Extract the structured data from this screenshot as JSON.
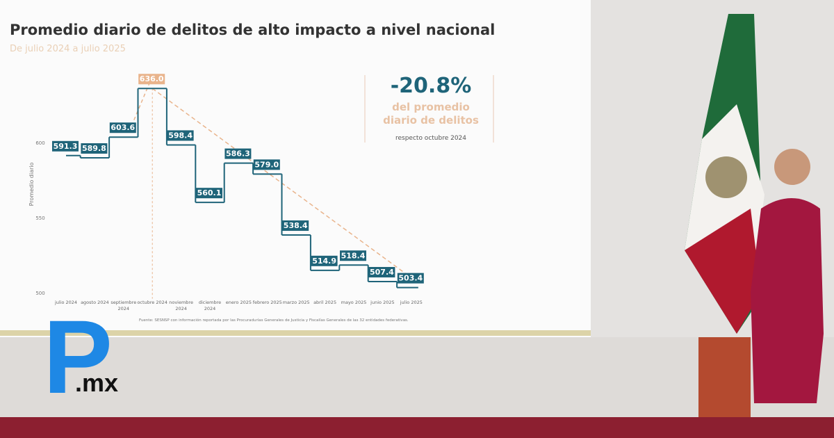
{
  "chart_data": {
    "type": "step",
    "title": "Promedio diario de delitos de alto impacto a nivel nacional",
    "subtitle": "De julio 2024 a julio 2025",
    "y_label": "Promedio diario",
    "categories": [
      "julio 2024",
      "agosto 2024",
      "septiembre 2024",
      "octubre 2024",
      "noviembre 2024",
      "diciembre 2024",
      "enero 2025",
      "febrero 2025",
      "marzo 2025",
      "abril 2025",
      "mayo 2025",
      "junio 2025",
      "julio 2025"
    ],
    "values": [
      591.3,
      589.8,
      603.6,
      636.0,
      598.4,
      560.1,
      586.3,
      579.0,
      538.4,
      514.9,
      518.4,
      507.4,
      503.4
    ],
    "value_labels": [
      "591.3",
      "589.8",
      "603.6",
      "636.0",
      "598.4",
      "560.1",
      "586.3",
      "579.0",
      "538.4",
      "514.9",
      "518.4",
      "507.4",
      "503.4"
    ],
    "color": "#1f6479",
    "peak_color": "#e9b48c",
    "ylim": [
      496,
      642
    ],
    "yticks": [
      500,
      550,
      600
    ],
    "annotation": {
      "value": "-20.8%",
      "text": "del promedio diario de delitos",
      "note": "respecto octubre 2024"
    },
    "source": "Fuente: SESNSP con información reportada por las Procuradurías Generales de Justicia y Fiscalías Generales de las 32 entidades federativas."
  },
  "logo": {
    "letter": "P",
    "suffix": ".mx"
  }
}
